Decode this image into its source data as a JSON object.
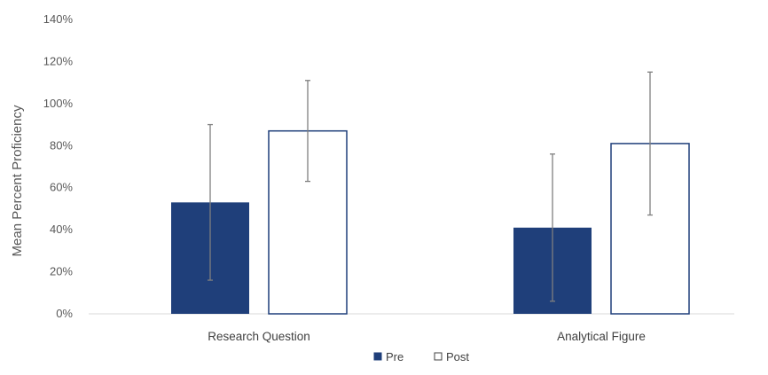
{
  "chart_data": {
    "type": "bar",
    "title": "",
    "xlabel": "",
    "ylabel": "Mean Percent Proficiency",
    "categories": [
      "Research Question",
      "Analytical Figure"
    ],
    "series": [
      {
        "name": "Pre",
        "values": [
          53,
          41
        ],
        "error": [
          37,
          35
        ],
        "color": "#1f3f7a",
        "fill": "solid"
      },
      {
        "name": "Post",
        "values": [
          87,
          81
        ],
        "error": [
          24,
          34
        ],
        "color": "#ffffff",
        "stroke": "#1f3f7a",
        "fill": "outline"
      }
    ],
    "ylim": [
      0,
      140
    ],
    "yticks": [
      0,
      20,
      40,
      60,
      80,
      100,
      120,
      140
    ],
    "ytick_labels": [
      "0%",
      "20%",
      "40%",
      "60%",
      "80%",
      "100%",
      "120%",
      "140%"
    ],
    "grid": false,
    "legend_position": "bottom-center"
  }
}
